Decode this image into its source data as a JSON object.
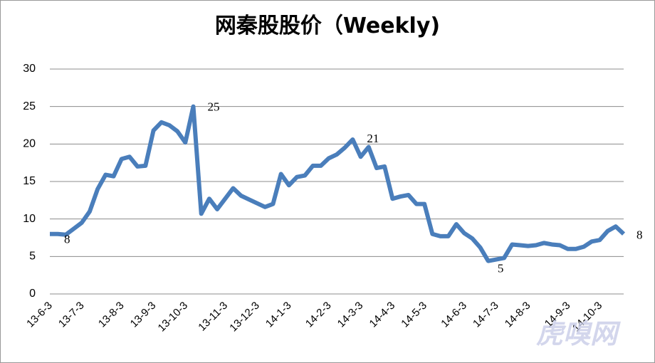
{
  "chart_data": {
    "type": "line",
    "title": "网秦股股价（Weekly)",
    "categories": [
      "13-6-3",
      null,
      null,
      null,
      "13-7-3",
      null,
      null,
      null,
      null,
      "13-8-3",
      null,
      null,
      null,
      "13-9-3",
      null,
      null,
      null,
      "13-10-3",
      null,
      null,
      null,
      null,
      "13-11-3",
      null,
      null,
      null,
      "13-12-3",
      null,
      null,
      null,
      "14-1-3",
      null,
      null,
      null,
      null,
      "14-2-3",
      null,
      null,
      null,
      "14-3-3",
      null,
      null,
      null,
      "14-4-3",
      null,
      null,
      null,
      "14-5-3",
      null,
      null,
      null,
      null,
      "14-6-3",
      null,
      null,
      null,
      "14-7-3",
      null,
      null,
      null,
      "14-8-3",
      null,
      null,
      null,
      null,
      "14-9-3",
      null,
      null,
      null,
      "14-10-3",
      null,
      null,
      null
    ],
    "series": [
      {
        "name": "网秦",
        "color": "#4a7ebb",
        "values": [
          8,
          8,
          7.9,
          8.7,
          9.5,
          11,
          14,
          15.9,
          15.7,
          18,
          18.3,
          17,
          17.1,
          21.8,
          22.9,
          22.5,
          21.7,
          20.2,
          25,
          10.7,
          12.7,
          11.3,
          12.7,
          14.1,
          13.1,
          12.6,
          12.1,
          11.6,
          12,
          16,
          14.5,
          15.6,
          15.8,
          17.1,
          17.1,
          18.1,
          18.6,
          19.5,
          20.6,
          18.3,
          19.6,
          16.8,
          17,
          12.7,
          13,
          13.2,
          12,
          12,
          8,
          7.7,
          7.7,
          9.3,
          8.1,
          7.4,
          6.2,
          4.4,
          4.6,
          4.8,
          6.6,
          6.5,
          6.4,
          6.5,
          6.8,
          6.6,
          6.5,
          6,
          6,
          6.3,
          7,
          7.2,
          8.4,
          9,
          8
        ],
        "value_labels": [
          "8",
          null,
          null,
          null,
          null,
          null,
          null,
          null,
          null,
          null,
          null,
          null,
          null,
          null,
          null,
          null,
          null,
          null,
          "25",
          null,
          null,
          null,
          null,
          null,
          null,
          null,
          null,
          null,
          null,
          null,
          null,
          null,
          null,
          null,
          null,
          null,
          null,
          null,
          "21",
          null,
          null,
          null,
          null,
          null,
          null,
          null,
          null,
          null,
          null,
          null,
          null,
          null,
          null,
          null,
          null,
          null,
          "5",
          null,
          null,
          null,
          null,
          null,
          null,
          null,
          null,
          null,
          null,
          null,
          null,
          null,
          null,
          null,
          "8"
        ]
      }
    ],
    "ylim": [
      0,
      30
    ],
    "yticks": [
      0,
      5,
      10,
      15,
      20,
      25,
      30
    ],
    "grid": true,
    "watermark": "虎嗅网"
  }
}
